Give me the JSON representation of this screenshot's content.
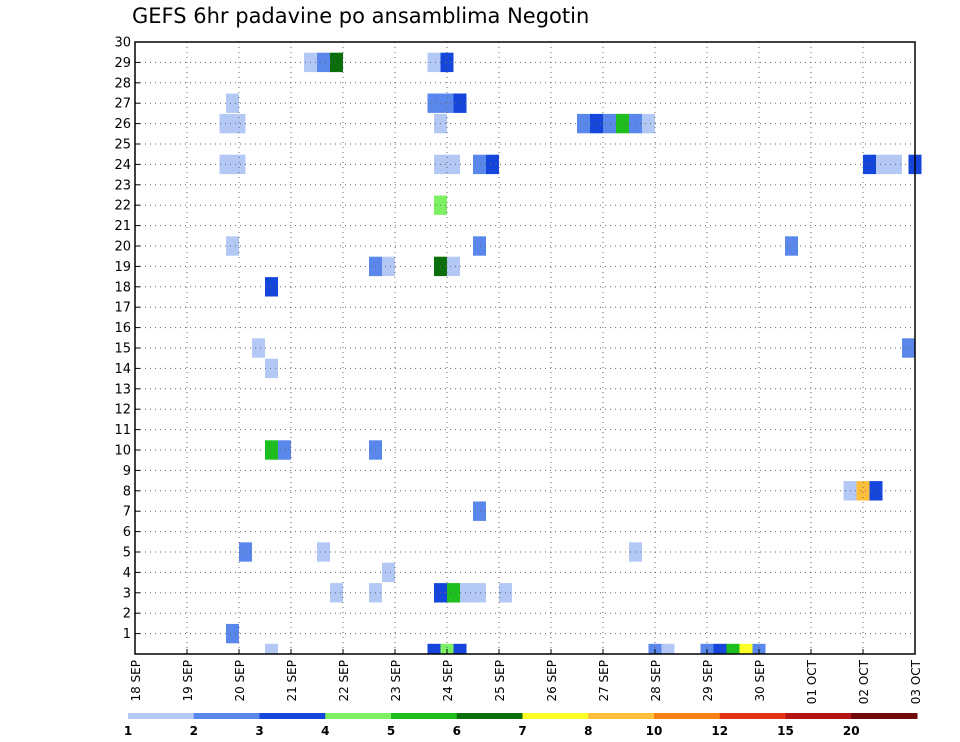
{
  "chart_data": {
    "type": "heatmap",
    "title": "GEFS 6hr padavine po ansamblima Negotin",
    "x_ticks": [
      "18 SEP",
      "19 SEP",
      "20 SEP",
      "21 SEP",
      "22 SEP",
      "23 SEP",
      "24 SEP",
      "25 SEP",
      "26 SEP",
      "27 SEP",
      "28 SEP",
      "29 SEP",
      "30 SEP",
      "01 OCT",
      "02 OCT",
      "03 OCT"
    ],
    "y_ticks": [
      "1",
      "2",
      "3",
      "4",
      "5",
      "6",
      "7",
      "8",
      "9",
      "10",
      "11",
      "12",
      "13",
      "14",
      "15",
      "16",
      "17",
      "18",
      "19",
      "20",
      "21",
      "22",
      "23",
      "24",
      "25",
      "26",
      "27",
      "28",
      "29",
      "30"
    ],
    "xlim_steps": [
      0,
      60
    ],
    "ylim": [
      0,
      30
    ],
    "time_step_hours": 6,
    "grid": true,
    "colorbar": {
      "levels": [
        "1",
        "2",
        "3",
        "4",
        "5",
        "6",
        "7",
        "8",
        "10",
        "12",
        "15",
        "20"
      ],
      "colors": [
        "#b4c8f6",
        "#5a87ec",
        "#1446dc",
        "#7ef064",
        "#1ebe1e",
        "#0a6e0a",
        "#ffff28",
        "#ffbe3c",
        "#fa8214",
        "#e63214",
        "#b41414",
        "#700a0a"
      ]
    },
    "cells": [
      {
        "step": 23.0,
        "member": 0,
        "bin": 2
      },
      {
        "step": 24.0,
        "member": 0,
        "bin": 3
      },
      {
        "step": 25.0,
        "member": 0,
        "bin": 2
      },
      {
        "step": 40.0,
        "member": 0,
        "bin": 1
      },
      {
        "step": 41.0,
        "member": 0,
        "bin": 0
      },
      {
        "step": 44.0,
        "member": 0,
        "bin": 1
      },
      {
        "step": 45.0,
        "member": 0,
        "bin": 2
      },
      {
        "step": 46.0,
        "member": 0,
        "bin": 4
      },
      {
        "step": 47.0,
        "member": 0,
        "bin": 6
      },
      {
        "step": 48.0,
        "member": 0,
        "bin": 1
      },
      {
        "step": 10.5,
        "member": 0,
        "bin": 0
      },
      {
        "step": 7.5,
        "member": 1,
        "bin": 1
      },
      {
        "step": 15.5,
        "member": 3,
        "bin": 0
      },
      {
        "step": 18.5,
        "member": 3,
        "bin": 0
      },
      {
        "step": 23.5,
        "member": 3,
        "bin": 2
      },
      {
        "step": 24.5,
        "member": 3,
        "bin": 4
      },
      {
        "step": 25.5,
        "member": 3,
        "bin": 0
      },
      {
        "step": 26.5,
        "member": 3,
        "bin": 0
      },
      {
        "step": 28.5,
        "member": 3,
        "bin": 0
      },
      {
        "step": 19.5,
        "member": 4,
        "bin": 0
      },
      {
        "step": 8.5,
        "member": 5,
        "bin": 1
      },
      {
        "step": 14.5,
        "member": 5,
        "bin": 0
      },
      {
        "step": 38.5,
        "member": 5,
        "bin": 0
      },
      {
        "step": 26.5,
        "member": 7,
        "bin": 1
      },
      {
        "step": 55.0,
        "member": 8,
        "bin": 0
      },
      {
        "step": 56.0,
        "member": 8,
        "bin": 7
      },
      {
        "step": 57.0,
        "member": 8,
        "bin": 2
      },
      {
        "step": 10.5,
        "member": 10,
        "bin": 4
      },
      {
        "step": 11.5,
        "member": 10,
        "bin": 1
      },
      {
        "step": 18.5,
        "member": 10,
        "bin": 1
      },
      {
        "step": 10.5,
        "member": 14,
        "bin": 0
      },
      {
        "step": 9.5,
        "member": 15,
        "bin": 0
      },
      {
        "step": 59.5,
        "member": 15,
        "bin": 1
      },
      {
        "step": 10.5,
        "member": 18,
        "bin": 2
      },
      {
        "step": 18.5,
        "member": 19,
        "bin": 1
      },
      {
        "step": 19.5,
        "member": 19,
        "bin": 0
      },
      {
        "step": 23.5,
        "member": 19,
        "bin": 5
      },
      {
        "step": 24.5,
        "member": 19,
        "bin": 0
      },
      {
        "step": 7.5,
        "member": 20,
        "bin": 0
      },
      {
        "step": 26.5,
        "member": 20,
        "bin": 1
      },
      {
        "step": 50.5,
        "member": 20,
        "bin": 1
      },
      {
        "step": 23.5,
        "member": 22,
        "bin": 3
      },
      {
        "step": 7.0,
        "member": 24,
        "bin": 0
      },
      {
        "step": 8.0,
        "member": 24,
        "bin": 0
      },
      {
        "step": 23.5,
        "member": 24,
        "bin": 0
      },
      {
        "step": 24.5,
        "member": 24,
        "bin": 0
      },
      {
        "step": 26.5,
        "member": 24,
        "bin": 1
      },
      {
        "step": 27.5,
        "member": 24,
        "bin": 2
      },
      {
        "step": 56.5,
        "member": 24,
        "bin": 2
      },
      {
        "step": 57.5,
        "member": 24,
        "bin": 0
      },
      {
        "step": 58.5,
        "member": 24,
        "bin": 0
      },
      {
        "step": 60.0,
        "member": 24,
        "bin": 2
      },
      {
        "step": 7.0,
        "member": 26,
        "bin": 0
      },
      {
        "step": 8.0,
        "member": 26,
        "bin": 0
      },
      {
        "step": 23.5,
        "member": 26,
        "bin": 0
      },
      {
        "step": 34.5,
        "member": 26,
        "bin": 1
      },
      {
        "step": 35.5,
        "member": 26,
        "bin": 2
      },
      {
        "step": 36.5,
        "member": 26,
        "bin": 1
      },
      {
        "step": 37.5,
        "member": 26,
        "bin": 4
      },
      {
        "step": 38.5,
        "member": 26,
        "bin": 1
      },
      {
        "step": 39.5,
        "member": 26,
        "bin": 0
      },
      {
        "step": 7.5,
        "member": 27,
        "bin": 0
      },
      {
        "step": 23.0,
        "member": 27,
        "bin": 1
      },
      {
        "step": 24.0,
        "member": 27,
        "bin": 1
      },
      {
        "step": 25.0,
        "member": 27,
        "bin": 2
      },
      {
        "step": 13.5,
        "member": 29,
        "bin": 0
      },
      {
        "step": 14.5,
        "member": 29,
        "bin": 1
      },
      {
        "step": 15.5,
        "member": 29,
        "bin": 5
      },
      {
        "step": 23.0,
        "member": 29,
        "bin": 0
      },
      {
        "step": 24.0,
        "member": 29,
        "bin": 2
      }
    ]
  }
}
